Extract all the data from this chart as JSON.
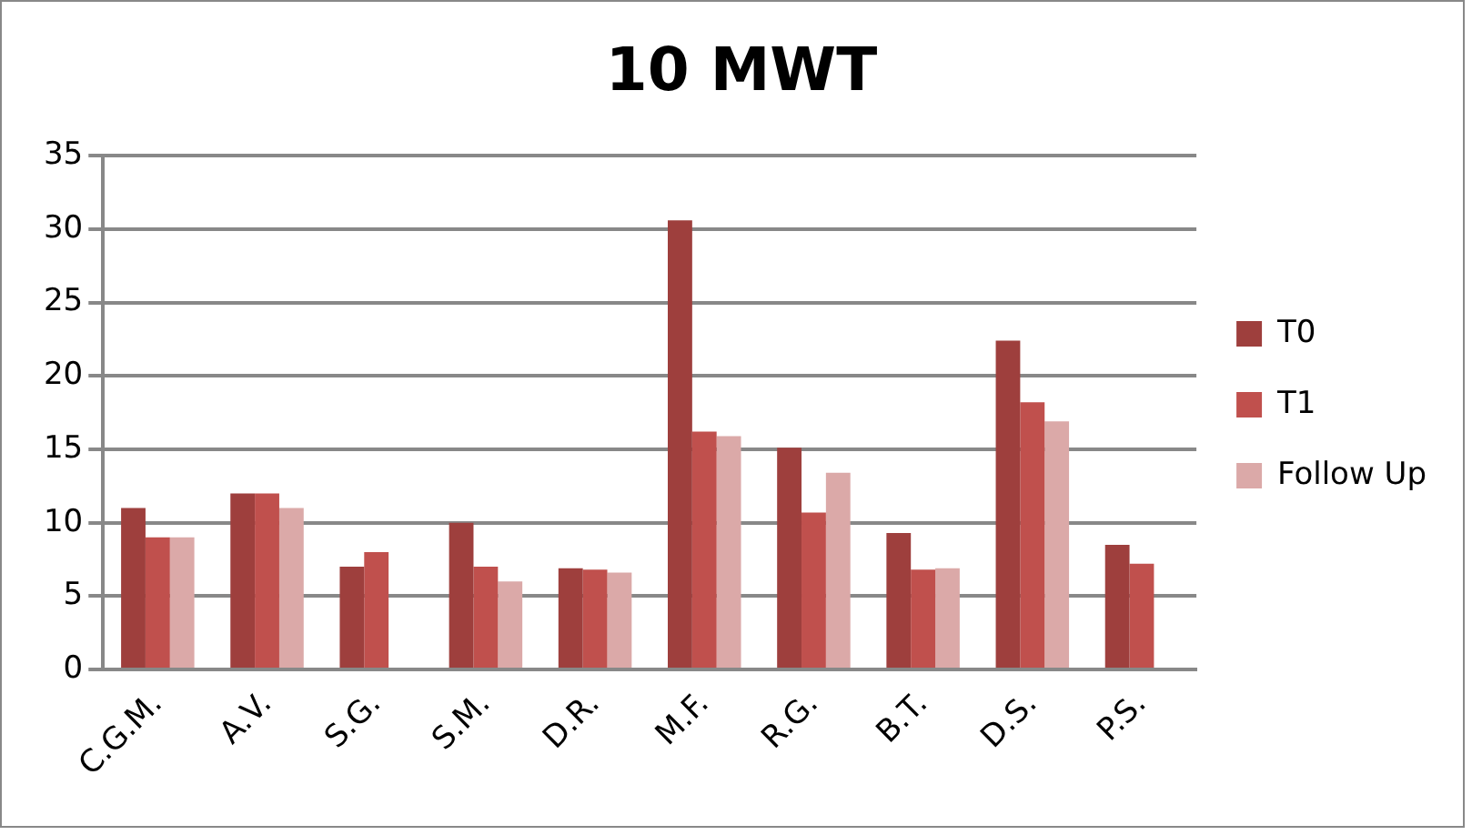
{
  "chart_data": {
    "type": "bar",
    "title": "10 MWT",
    "categories": [
      "C.G.M.",
      "A.V.",
      "S.G.",
      "S.M.",
      "D.R.",
      "M.F.",
      "R.G.",
      "B.T.",
      "D.S.",
      "P.S."
    ],
    "series": [
      {
        "name": "T0",
        "color": "#9e3f3d",
        "values": [
          11,
          12,
          7,
          10,
          6.9,
          30.6,
          15.1,
          9.3,
          22.4,
          8.5
        ]
      },
      {
        "name": "T1",
        "color": "#c0504d",
        "values": [
          9,
          12,
          8,
          7,
          6.8,
          16.2,
          10.7,
          6.8,
          18.2,
          7.2
        ]
      },
      {
        "name": "Follow Up",
        "color": "#dba9a8",
        "values": [
          9,
          11,
          null,
          6,
          6.6,
          15.9,
          13.4,
          6.9,
          16.9,
          null
        ]
      }
    ],
    "ylim": [
      0,
      35
    ],
    "yticks": [
      0,
      5,
      10,
      15,
      20,
      25,
      30,
      35
    ],
    "grid": "y",
    "legend": "right"
  }
}
